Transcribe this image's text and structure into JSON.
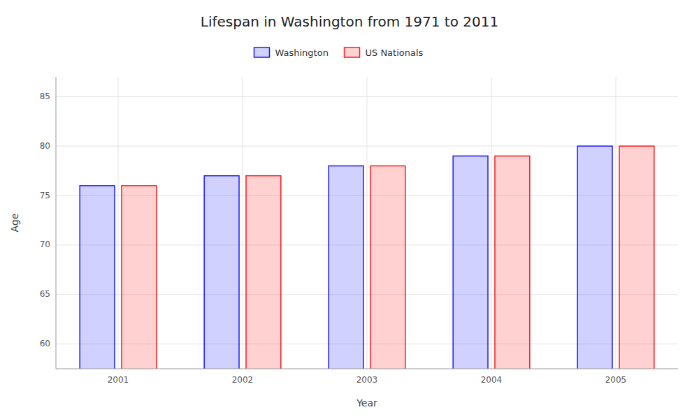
{
  "chart_data": {
    "type": "bar",
    "title": "Lifespan in Washington from 1971 to 2011",
    "x_label": "Year",
    "y_label": "Age",
    "categories": [
      "2001",
      "2002",
      "2003",
      "2004",
      "2005"
    ],
    "series": [
      {
        "name": "Washington",
        "color": "#1a1aff",
        "values": [
          76,
          77,
          78,
          79,
          80
        ]
      },
      {
        "name": "US Nationals",
        "color": "#ff1a1a",
        "values": [
          76,
          77,
          78,
          79,
          80
        ]
      }
    ],
    "ylim": [
      57.5,
      87
    ],
    "yticks": [
      60,
      65,
      70,
      75,
      80,
      85
    ],
    "grid": true,
    "legend": "top"
  }
}
